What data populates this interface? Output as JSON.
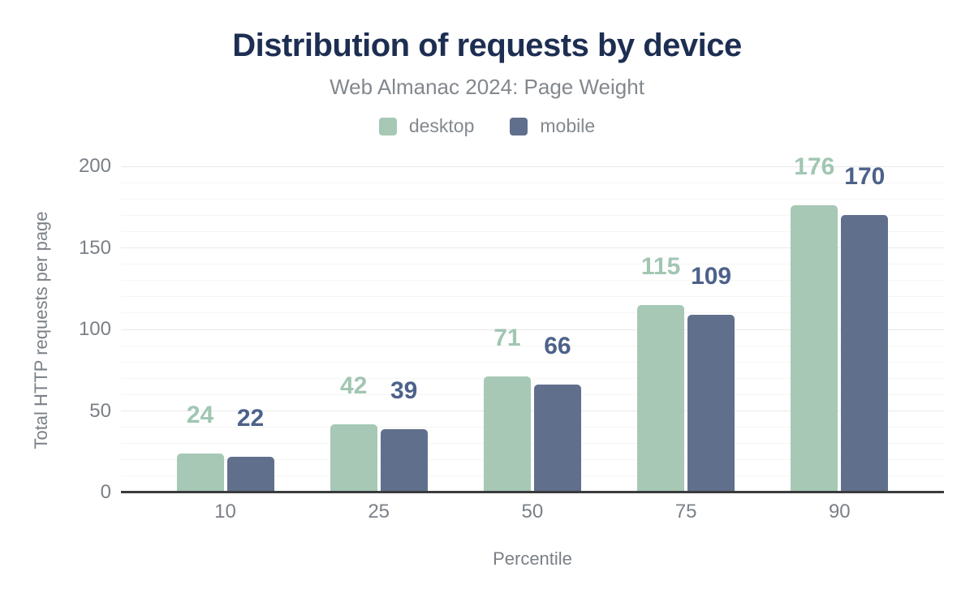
{
  "chart_data": {
    "type": "bar",
    "title": "Distribution of requests by device",
    "subtitle": "Web Almanac 2024: Page Weight",
    "xlabel": "Percentile",
    "ylabel": "Total HTTP requests per page",
    "categories": [
      "10",
      "25",
      "50",
      "75",
      "90"
    ],
    "series": [
      {
        "name": "desktop",
        "color": "#a6c8b5",
        "label_color": "#a1c6b2",
        "values": [
          24,
          42,
          71,
          115,
          176
        ]
      },
      {
        "name": "mobile",
        "color": "#60708c",
        "label_color": "#4d628a",
        "values": [
          22,
          39,
          66,
          109,
          170
        ]
      }
    ],
    "ylim": [
      0,
      200
    ],
    "yticks": [
      0,
      50,
      100,
      150,
      200
    ],
    "minor_gridline_step": 10,
    "major_gridline_step": 50,
    "grid": true,
    "legend_position": "top"
  },
  "style": {
    "title_color": "#1d2e52",
    "subtitle_color": "#82888e",
    "axis_text_color": "#7a8087",
    "major_gridline_color": "#e8e9e7",
    "minor_gridline_color": "#f5f5f3",
    "axis_line_color": "#3a3b3d",
    "background_color": "#ffffff"
  }
}
